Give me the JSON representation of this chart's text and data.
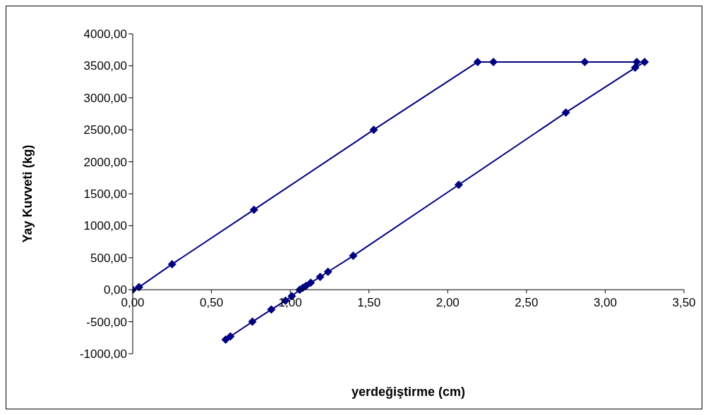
{
  "chart_data": {
    "type": "line",
    "xlabel": "yerdeğiştirme (cm)",
    "ylabel": "Yay Kuvveti (kg)",
    "xlim": [
      0,
      3.5
    ],
    "ylim": [
      -1000,
      4000
    ],
    "xticks": [
      {
        "value": 0,
        "label": "0,00"
      },
      {
        "value": 0.5,
        "label": "0,50"
      },
      {
        "value": 1,
        "label": "1,00"
      },
      {
        "value": 1.5,
        "label": "1,50"
      },
      {
        "value": 2,
        "label": "2,00"
      },
      {
        "value": 2.5,
        "label": "2,50"
      },
      {
        "value": 3,
        "label": "3,00"
      },
      {
        "value": 3.5,
        "label": "3,50"
      }
    ],
    "yticks": [
      {
        "value": -1000,
        "label": "-1000,00"
      },
      {
        "value": -500,
        "label": "-500,00"
      },
      {
        "value": 0,
        "label": "0,00"
      },
      {
        "value": 500,
        "label": "500,00"
      },
      {
        "value": 1000,
        "label": "1000,00"
      },
      {
        "value": 1500,
        "label": "1500,00"
      },
      {
        "value": 2000,
        "label": "2000,00"
      },
      {
        "value": 2500,
        "label": "2500,00"
      },
      {
        "value": 3000,
        "label": "3000,00"
      },
      {
        "value": 3500,
        "label": "3500,00"
      },
      {
        "value": 4000,
        "label": "4000,00"
      }
    ],
    "grid": false,
    "legend": false,
    "marker": "diamond",
    "line_style": "solid",
    "series": [
      {
        "color": "#000080",
        "x": [
          0,
          0.04,
          0.25,
          0.77,
          1.53,
          2.19,
          2.29,
          2.87,
          3.2,
          3.25,
          3.19,
          2.75,
          2.07,
          1.4,
          1.24,
          1.19,
          1.13,
          1.1,
          1.08,
          1.06,
          1.01,
          0.97,
          0.88,
          0.76,
          0.62,
          0.59
        ],
        "values": [
          0,
          40,
          400,
          1250,
          2500,
          3560,
          3560,
          3560,
          3560,
          3560,
          3470,
          2770,
          1640,
          530,
          280,
          200,
          110,
          60,
          30,
          0,
          -100,
          -170,
          -310,
          -500,
          -730,
          -780
        ]
      }
    ]
  }
}
